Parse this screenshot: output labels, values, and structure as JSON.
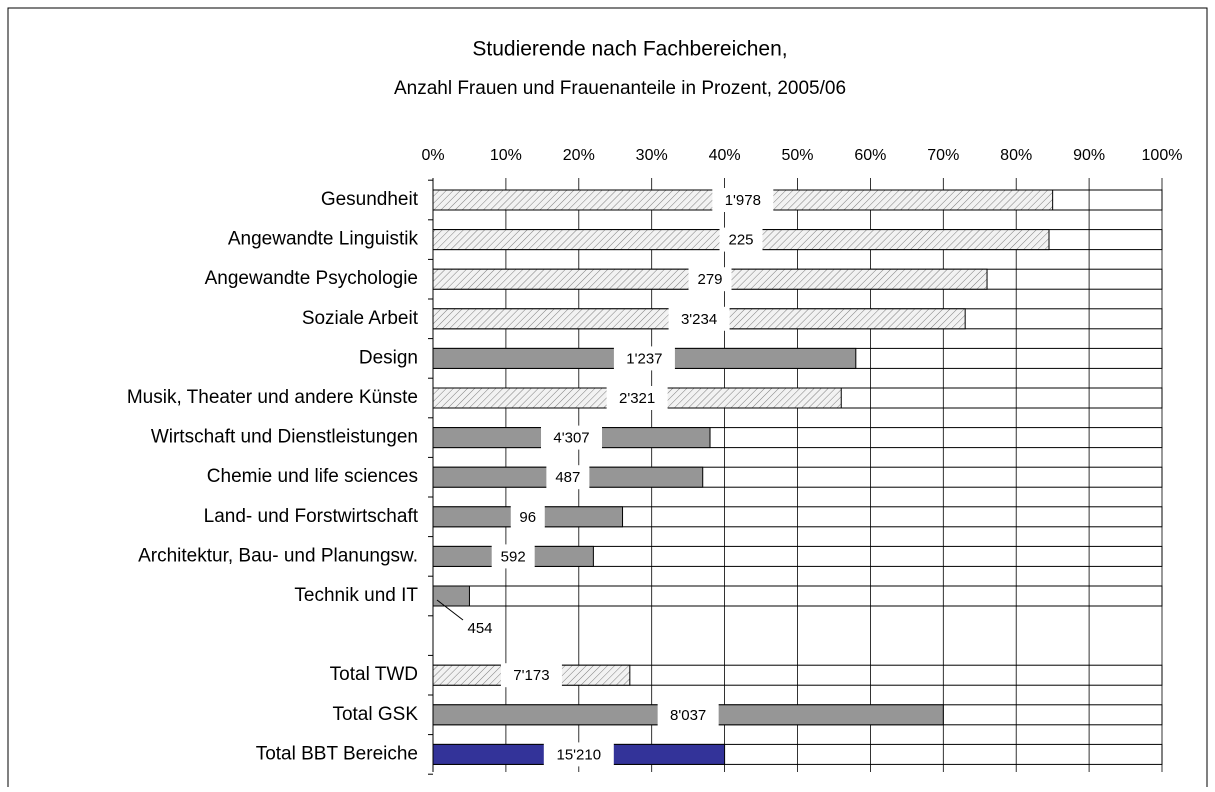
{
  "chart_data": {
    "type": "bar",
    "orientation": "horizontal",
    "title": "Studierende nach Fachbereichen,",
    "subtitle": "Anzahl Frauen und Frauenanteile in Prozent, 2005/06",
    "categories": [
      "Gesundheit",
      "Angewandte Linguistik",
      "Angewandte Psychologie",
      "Soziale Arbeit",
      "Design",
      "Musik, Theater und andere Künste",
      "Wirtschaft und Dienstleistungen",
      "Chemie und life sciences",
      "Land- und Forstwirtschaft",
      "Architektur, Bau- und Planungsw.",
      "Technik und  IT",
      null,
      "Total TWD",
      "Total GSK",
      "Total BBT Bereiche"
    ],
    "values": [
      85,
      84.5,
      76,
      73,
      58,
      56,
      38,
      37,
      26,
      22,
      5,
      null,
      27,
      70,
      40
    ],
    "count_labels": [
      "1'978",
      "225",
      "279",
      "3'234",
      "1'237",
      "2'321",
      "4'307",
      "487",
      "96",
      "592",
      "454",
      null,
      "7'173",
      "8'037",
      "15'210"
    ],
    "colors": [
      "#e6e6e6",
      "#e6e6e6",
      "#e6e6e6",
      "#e6e6e6",
      "#969696",
      "#e6e6e6",
      "#969696",
      "#969696",
      "#969696",
      "#969696",
      "#969696",
      null,
      "#e6e6e6",
      "#969696",
      "#333399"
    ],
    "hatched": [
      true,
      true,
      true,
      true,
      false,
      true,
      false,
      false,
      false,
      false,
      false,
      null,
      true,
      false,
      false
    ],
    "xlim": [
      0,
      100
    ],
    "xticks": [
      {
        "value": 0,
        "label": "0%"
      },
      {
        "value": 10,
        "label": "10%"
      },
      {
        "value": 20,
        "label": "20%"
      },
      {
        "value": 30,
        "label": "30%"
      },
      {
        "value": 40,
        "label": "40%"
      },
      {
        "value": 50,
        "label": "50%"
      },
      {
        "value": 60,
        "label": "60%"
      },
      {
        "value": 70,
        "label": "70%"
      },
      {
        "value": 80,
        "label": "80%"
      },
      {
        "value": 90,
        "label": "90%"
      },
      {
        "value": 100,
        "label": "100%"
      }
    ],
    "grid": true
  }
}
